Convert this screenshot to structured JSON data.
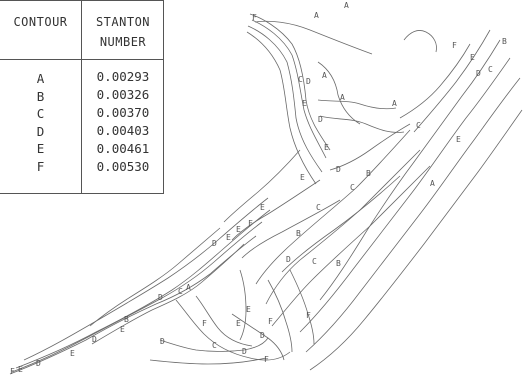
{
  "legend": {
    "header_contour": "CONTOUR",
    "header_stanton_1": "STANTON",
    "header_stanton_2": "NUMBER",
    "rows": [
      {
        "label": "A",
        "value": "0.00293"
      },
      {
        "label": "B",
        "value": "0.00326"
      },
      {
        "label": "C",
        "value": "0.00370"
      },
      {
        "label": "D",
        "value": "0.00403"
      },
      {
        "label": "E",
        "value": "0.00461"
      },
      {
        "label": "F",
        "value": "0.00530"
      }
    ]
  },
  "contour_label_letters": [
    "A",
    "B",
    "C",
    "D",
    "E",
    "F"
  ],
  "colors": {
    "line": "#6a6a6a",
    "text": "#333333",
    "background": "#ffffff"
  }
}
